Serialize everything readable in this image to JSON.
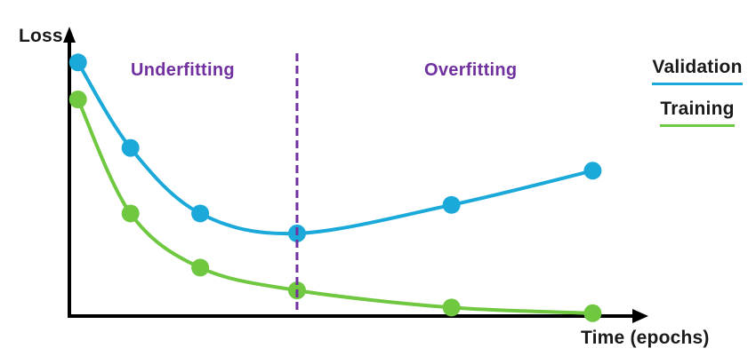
{
  "labels": {
    "y_axis": "Loss",
    "x_axis": "Time (epochs)",
    "region_left": "Underfitting",
    "region_right": "Overfitting"
  },
  "legend": {
    "items": [
      {
        "label": "Validation",
        "color": "#1BA9DA"
      },
      {
        "label": "Training",
        "color": "#6FC840"
      }
    ]
  },
  "colors": {
    "validation": "#1BA9DA",
    "training": "#6FC840",
    "region_text": "#7030A0",
    "divider": "#7030A0",
    "axis": "#000000"
  },
  "chart_data": {
    "type": "line",
    "title": "",
    "xlabel": "Time (epochs)",
    "ylabel": "Loss",
    "x_range": [
      0,
      1
    ],
    "y_range": [
      0,
      1
    ],
    "grid": false,
    "legend_position": "right",
    "x": [
      0.015,
      0.106,
      0.227,
      0.395,
      0.663,
      0.908
    ],
    "series": [
      {
        "name": "Validation",
        "color": "#1BA9DA",
        "values": [
          0.89,
          0.59,
          0.36,
          0.29,
          0.39,
          0.51
        ]
      },
      {
        "name": "Training",
        "color": "#6FC840",
        "values": [
          0.76,
          0.36,
          0.17,
          0.09,
          0.03,
          0.01
        ]
      }
    ],
    "divider_x": 0.395,
    "annotations": [
      {
        "text": "Underfitting",
        "side": "left_of_divider"
      },
      {
        "text": "Overfitting",
        "side": "right_of_divider"
      }
    ],
    "marker": "circle",
    "marker_radius": 10
  }
}
